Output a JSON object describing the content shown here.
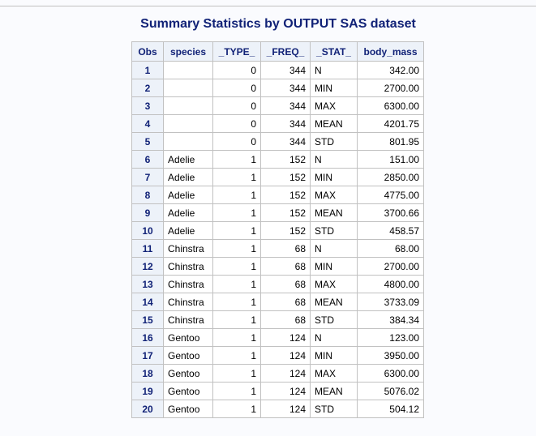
{
  "title": "Summary Statistics by OUTPUT SAS dataset",
  "table": {
    "columns": [
      "Obs",
      "species",
      "_TYPE_",
      "_FREQ_",
      "_STAT_",
      "body_mass"
    ],
    "rows": [
      {
        "obs": "1",
        "species": "",
        "type": "0",
        "freq": "344",
        "stat": "N",
        "body_mass": "342.00"
      },
      {
        "obs": "2",
        "species": "",
        "type": "0",
        "freq": "344",
        "stat": "MIN",
        "body_mass": "2700.00"
      },
      {
        "obs": "3",
        "species": "",
        "type": "0",
        "freq": "344",
        "stat": "MAX",
        "body_mass": "6300.00"
      },
      {
        "obs": "4",
        "species": "",
        "type": "0",
        "freq": "344",
        "stat": "MEAN",
        "body_mass": "4201.75"
      },
      {
        "obs": "5",
        "species": "",
        "type": "0",
        "freq": "344",
        "stat": "STD",
        "body_mass": "801.95"
      },
      {
        "obs": "6",
        "species": "Adelie",
        "type": "1",
        "freq": "152",
        "stat": "N",
        "body_mass": "151.00"
      },
      {
        "obs": "7",
        "species": "Adelie",
        "type": "1",
        "freq": "152",
        "stat": "MIN",
        "body_mass": "2850.00"
      },
      {
        "obs": "8",
        "species": "Adelie",
        "type": "1",
        "freq": "152",
        "stat": "MAX",
        "body_mass": "4775.00"
      },
      {
        "obs": "9",
        "species": "Adelie",
        "type": "1",
        "freq": "152",
        "stat": "MEAN",
        "body_mass": "3700.66"
      },
      {
        "obs": "10",
        "species": "Adelie",
        "type": "1",
        "freq": "152",
        "stat": "STD",
        "body_mass": "458.57"
      },
      {
        "obs": "11",
        "species": "Chinstra",
        "type": "1",
        "freq": "68",
        "stat": "N",
        "body_mass": "68.00"
      },
      {
        "obs": "12",
        "species": "Chinstra",
        "type": "1",
        "freq": "68",
        "stat": "MIN",
        "body_mass": "2700.00"
      },
      {
        "obs": "13",
        "species": "Chinstra",
        "type": "1",
        "freq": "68",
        "stat": "MAX",
        "body_mass": "4800.00"
      },
      {
        "obs": "14",
        "species": "Chinstra",
        "type": "1",
        "freq": "68",
        "stat": "MEAN",
        "body_mass": "3733.09"
      },
      {
        "obs": "15",
        "species": "Chinstra",
        "type": "1",
        "freq": "68",
        "stat": "STD",
        "body_mass": "384.34"
      },
      {
        "obs": "16",
        "species": "Gentoo",
        "type": "1",
        "freq": "124",
        "stat": "N",
        "body_mass": "123.00"
      },
      {
        "obs": "17",
        "species": "Gentoo",
        "type": "1",
        "freq": "124",
        "stat": "MIN",
        "body_mass": "3950.00"
      },
      {
        "obs": "18",
        "species": "Gentoo",
        "type": "1",
        "freq": "124",
        "stat": "MAX",
        "body_mass": "6300.00"
      },
      {
        "obs": "19",
        "species": "Gentoo",
        "type": "1",
        "freq": "124",
        "stat": "MEAN",
        "body_mass": "5076.02"
      },
      {
        "obs": "20",
        "species": "Gentoo",
        "type": "1",
        "freq": "124",
        "stat": "STD",
        "body_mass": "504.12"
      }
    ]
  },
  "colors": {
    "title": "#112277",
    "header_background": "#edf2f9",
    "border": "#c1c1c1",
    "page_background": "#fafbfe"
  }
}
